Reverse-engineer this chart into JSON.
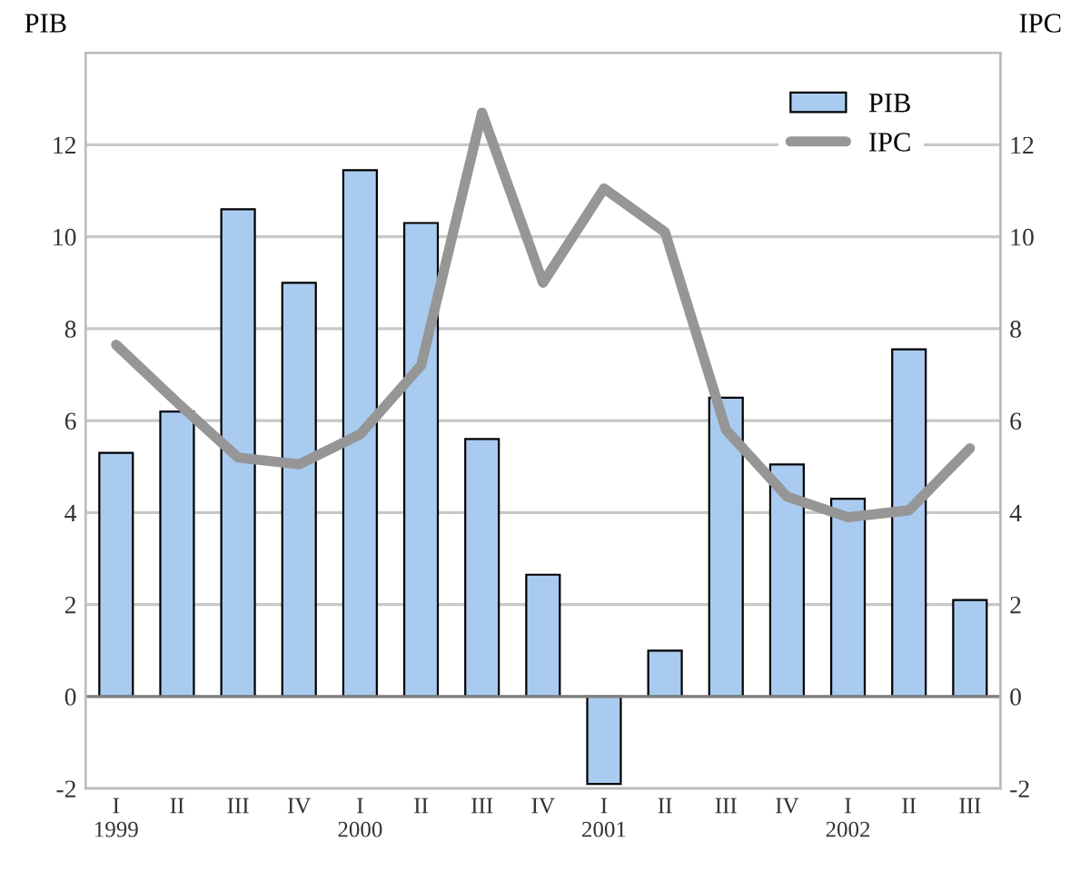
{
  "chart_data": {
    "type": "bar",
    "ylabel": "PIB",
    "y2label": "IPC",
    "categories": [
      "I\n1999",
      "II",
      "III",
      "IV",
      "I\n2000",
      "II",
      "III",
      "IV",
      "I\n2001",
      "II",
      "III",
      "IV",
      "I\n2002",
      "II",
      "III"
    ],
    "series": [
      {
        "name": "PIB",
        "color": "#a9cbf0",
        "values": [
          5.3,
          6.2,
          10.6,
          9.0,
          11.45,
          10.3,
          5.6,
          2.65,
          -1.9,
          1.0,
          6.5,
          5.05,
          4.3,
          7.55,
          2.1
        ]
      },
      {
        "name": "IPC",
        "type": "line",
        "axis": "y2",
        "color": "#969696",
        "values": [
          7.65,
          6.4,
          5.2,
          5.05,
          5.7,
          7.2,
          12.7,
          9.0,
          11.05,
          10.1,
          5.8,
          4.35,
          3.9,
          4.05,
          5.4
        ]
      }
    ],
    "ylim": [
      -2,
      14
    ],
    "yticks": [
      -2,
      0,
      2,
      4,
      6,
      8,
      10,
      12
    ],
    "y2lim": [
      -2,
      14
    ],
    "y2ticks": [
      -2,
      0,
      2,
      4,
      6,
      8,
      10,
      12
    ],
    "grid": "y",
    "legend": "top right",
    "marker": "none",
    "line_style": "solid"
  }
}
